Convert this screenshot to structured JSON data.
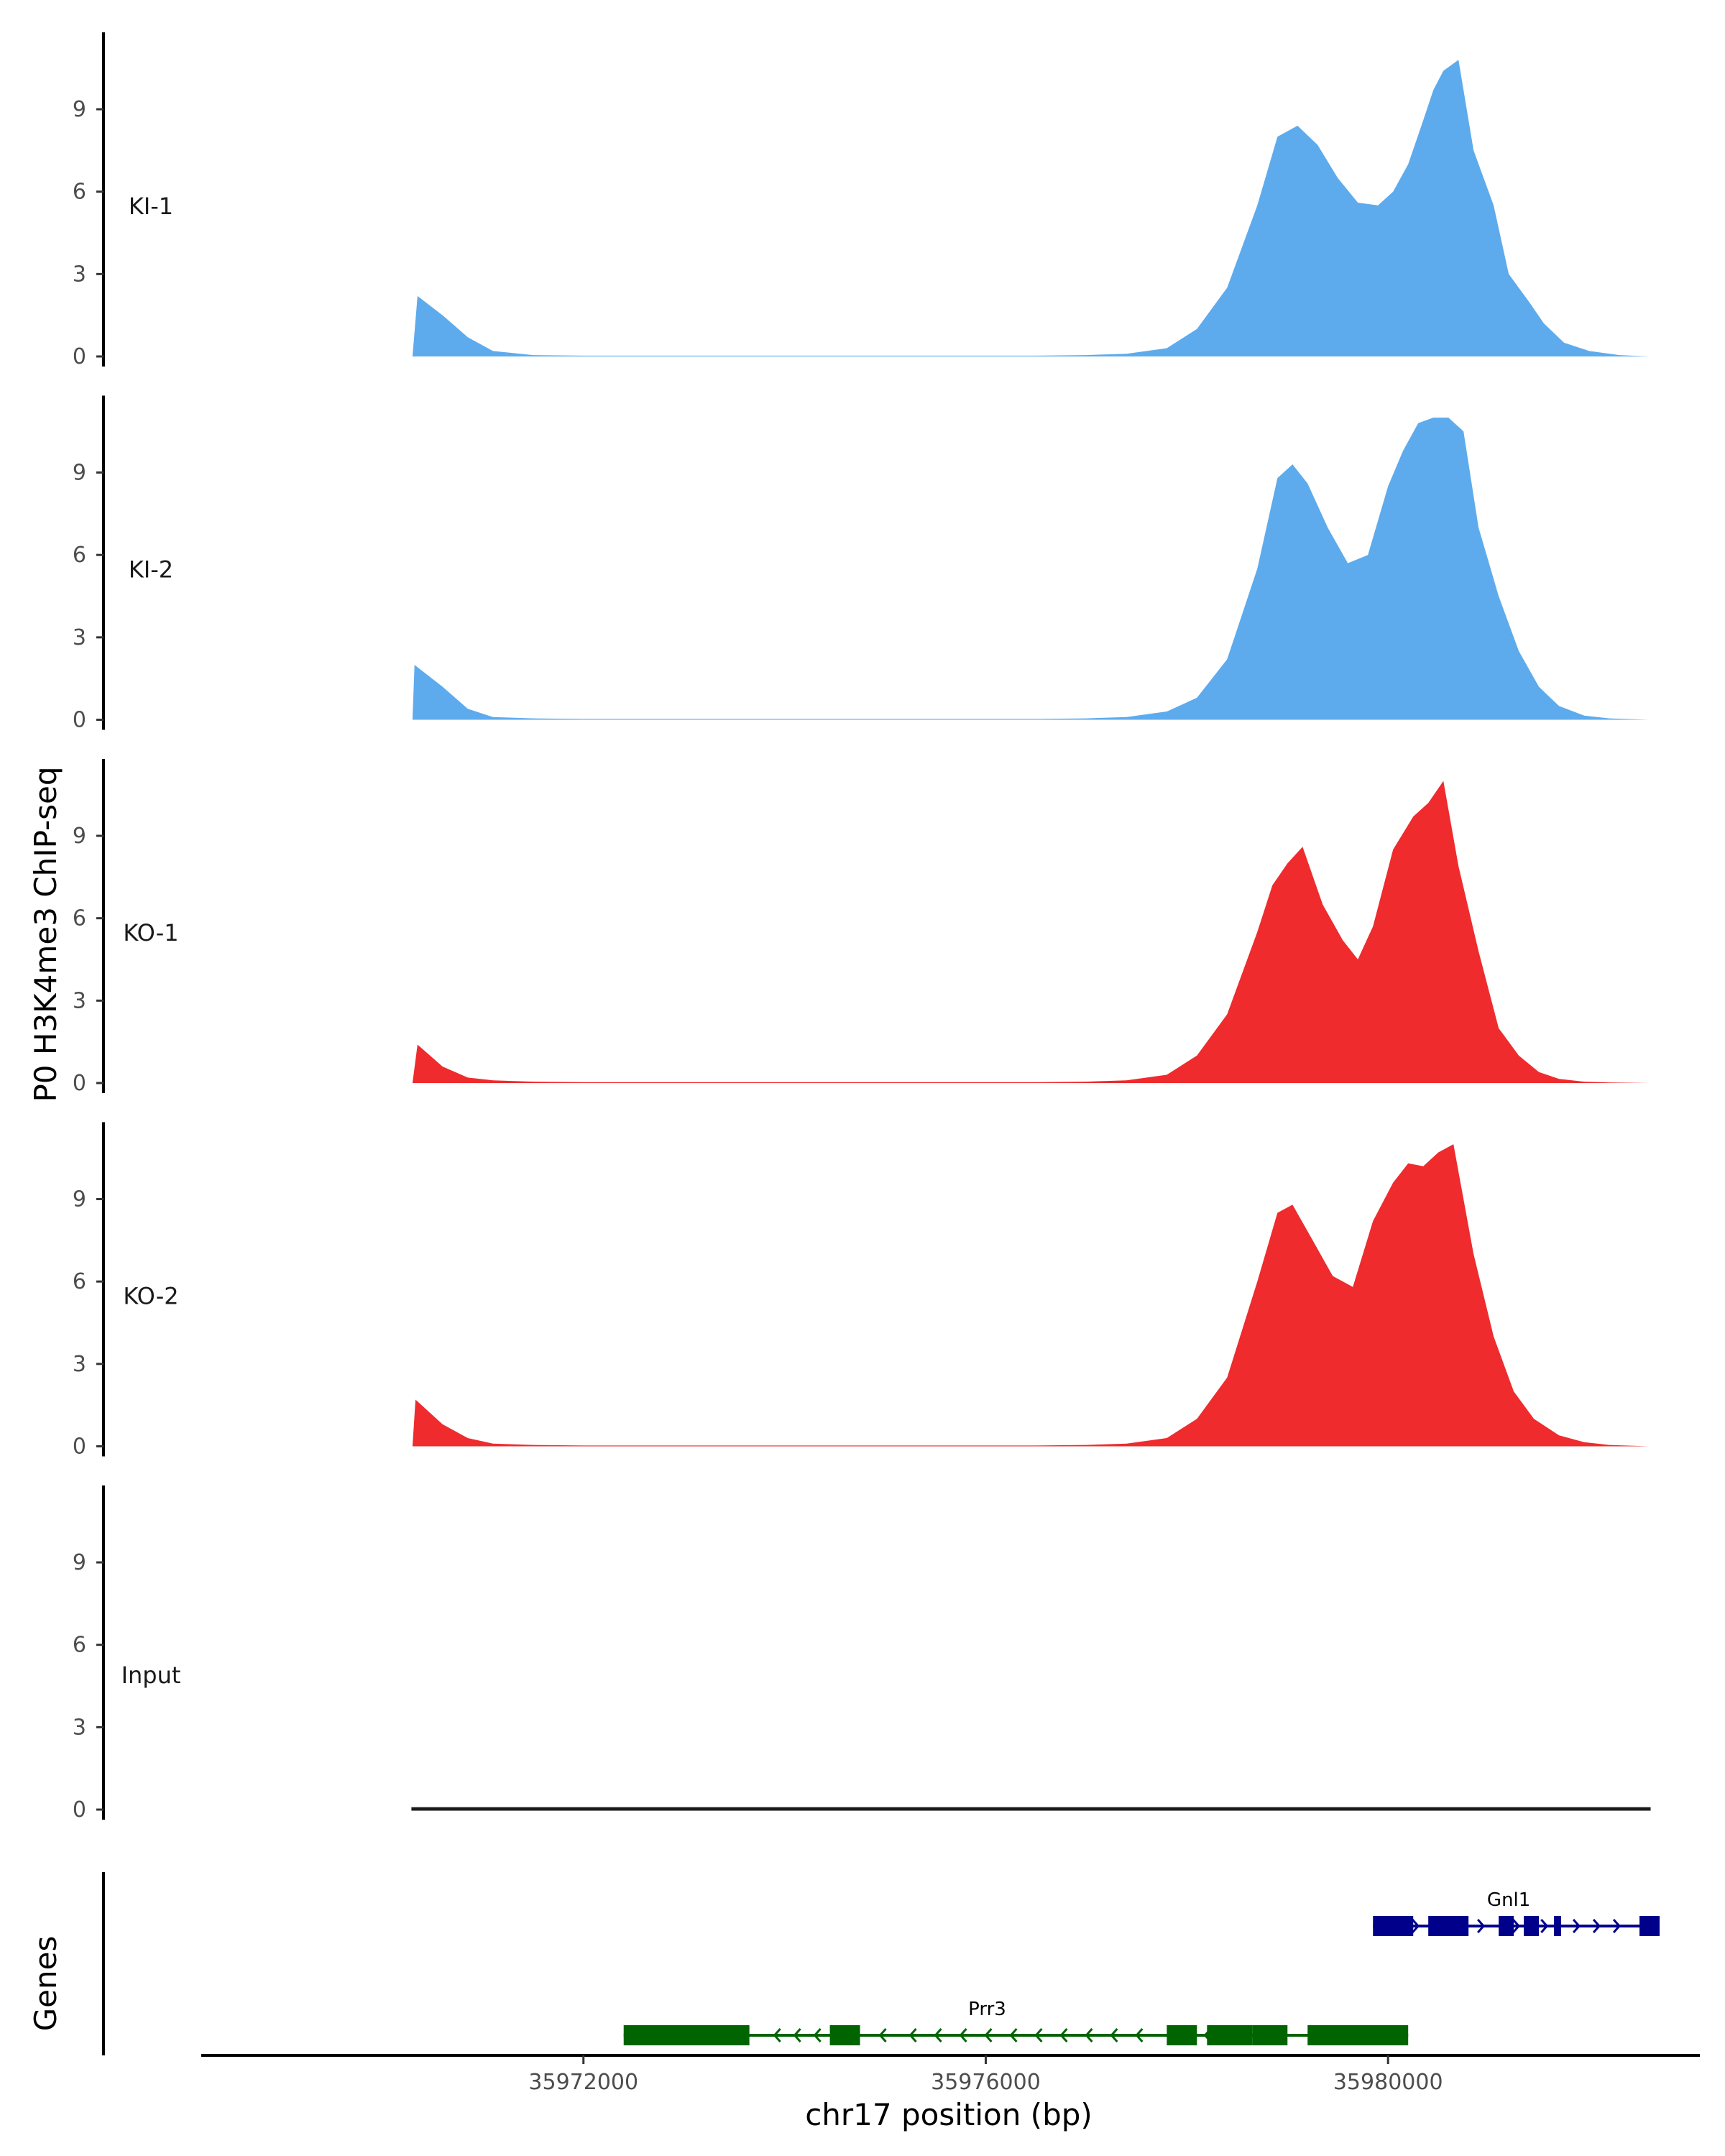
{
  "chart_data": {
    "type": "area",
    "ylabel": "P0 H3K4me3 ChIP-seq",
    "xlabel": "chr17 position (bp)",
    "genes_label": "Genes",
    "xlim": [
      35968200,
      35983100
    ],
    "ylim": [
      0,
      11.8
    ],
    "yticks": [
      0,
      3,
      6,
      9
    ],
    "xticks": [
      {
        "value": 35972000,
        "label": "35972000"
      },
      {
        "value": 35976000,
        "label": "35976000"
      },
      {
        "value": 35980000,
        "label": "35980000"
      }
    ],
    "colors": {
      "KI": "#5dabed",
      "KO": "#ef2b2d",
      "Input": "#1a1a1a",
      "Gnl1": "#00008b",
      "Prr3": "#006400"
    },
    "tracks": [
      {
        "label": "KI-1",
        "color": "#5dabed",
        "x": [
          35970300,
          35970350,
          35970600,
          35970850,
          35971100,
          35971500,
          35972000,
          35972500,
          35973000,
          35973500,
          35974000,
          35974500,
          35975000,
          35975500,
          35976000,
          35976500,
          35977000,
          35977400,
          35977800,
          35978100,
          35978400,
          35978700,
          35978900,
          35979100,
          35979300,
          35979500,
          35979700,
          35979900,
          35980050,
          35980200,
          35980350,
          35980450,
          35980550,
          35980700,
          35980850,
          35981050,
          35981200,
          35981400,
          35981550,
          35981750,
          35982000,
          35982300,
          35982600
        ],
        "y": [
          0,
          2.2,
          1.5,
          0.7,
          0.2,
          0.05,
          0.03,
          0.03,
          0.03,
          0.03,
          0.03,
          0.03,
          0.03,
          0.03,
          0.03,
          0.03,
          0.05,
          0.1,
          0.3,
          1.0,
          2.5,
          5.5,
          8.0,
          8.4,
          7.7,
          6.5,
          5.6,
          5.5,
          6.0,
          7.0,
          8.6,
          9.7,
          10.4,
          10.8,
          7.5,
          5.5,
          3.0,
          2.0,
          1.2,
          0.5,
          0.2,
          0.05,
          0
        ]
      },
      {
        "label": "KI-2",
        "color": "#5dabed",
        "x": [
          35970300,
          35970320,
          35970600,
          35970850,
          35971100,
          35971500,
          35972000,
          35972500,
          35973000,
          35973500,
          35974000,
          35974500,
          35975000,
          35975500,
          35976000,
          35976500,
          35977000,
          35977400,
          35977800,
          35978100,
          35978400,
          35978700,
          35978900,
          35979050,
          35979200,
          35979400,
          35979600,
          35979800,
          35980000,
          35980150,
          35980300,
          35980450,
          35980600,
          35980750,
          35980900,
          35981100,
          35981300,
          35981500,
          35981700,
          35981950,
          35982200,
          35982600
        ],
        "y": [
          0,
          2.0,
          1.2,
          0.4,
          0.1,
          0.05,
          0.03,
          0.03,
          0.03,
          0.03,
          0.03,
          0.03,
          0.03,
          0.03,
          0.03,
          0.03,
          0.05,
          0.1,
          0.3,
          0.8,
          2.2,
          5.5,
          8.8,
          9.3,
          8.6,
          7.0,
          5.7,
          6.0,
          8.5,
          9.8,
          10.8,
          11.0,
          11.0,
          10.5,
          7.0,
          4.5,
          2.5,
          1.2,
          0.5,
          0.15,
          0.05,
          0
        ]
      },
      {
        "label": "KO-1",
        "color": "#ef2b2d",
        "x": [
          35970300,
          35970350,
          35970600,
          35970850,
          35971100,
          35971500,
          35972000,
          35972500,
          35973000,
          35973500,
          35974000,
          35974500,
          35975000,
          35975500,
          35976000,
          35976500,
          35977000,
          35977400,
          35977800,
          35978100,
          35978400,
          35978700,
          35978850,
          35979000,
          35979150,
          35979350,
          35979550,
          35979700,
          35979850,
          35980050,
          35980250,
          35980400,
          35980550,
          35980700,
          35980900,
          35981100,
          35981300,
          35981500,
          35981700,
          35981950,
          35982200,
          35982600
        ],
        "y": [
          0,
          1.4,
          0.6,
          0.2,
          0.1,
          0.05,
          0.03,
          0.03,
          0.03,
          0.03,
          0.03,
          0.03,
          0.03,
          0.03,
          0.03,
          0.03,
          0.05,
          0.1,
          0.3,
          1.0,
          2.5,
          5.5,
          7.2,
          8.0,
          8.6,
          6.5,
          5.2,
          4.5,
          5.7,
          8.5,
          9.7,
          10.2,
          11.0,
          7.9,
          4.8,
          2.0,
          1.0,
          0.4,
          0.15,
          0.05,
          0.02,
          0
        ]
      },
      {
        "label": "KO-2",
        "color": "#ef2b2d",
        "x": [
          35970300,
          35970330,
          35970600,
          35970850,
          35971100,
          35971500,
          35972000,
          35972500,
          35973000,
          35973500,
          35974000,
          35974500,
          35975000,
          35975500,
          35976000,
          35976500,
          35977000,
          35977400,
          35977800,
          35978100,
          35978400,
          35978700,
          35978900,
          35979050,
          35979250,
          35979450,
          35979650,
          35979850,
          35980050,
          35980200,
          35980350,
          35980500,
          35980650,
          35980850,
          35981050,
          35981250,
          35981450,
          35981700,
          35981950,
          35982200,
          35982600
        ],
        "y": [
          0,
          1.7,
          0.8,
          0.3,
          0.1,
          0.05,
          0.03,
          0.03,
          0.03,
          0.03,
          0.03,
          0.03,
          0.03,
          0.03,
          0.03,
          0.03,
          0.05,
          0.1,
          0.3,
          1.0,
          2.5,
          6.0,
          8.5,
          8.8,
          7.5,
          6.2,
          5.8,
          8.2,
          9.6,
          10.3,
          10.2,
          10.7,
          11.0,
          7.0,
          4.0,
          2.0,
          1.0,
          0.4,
          0.15,
          0.05,
          0
        ]
      },
      {
        "label": "Input",
        "color": "#1a1a1a",
        "x": [
          35970300,
          35972000,
          35974000,
          35976000,
          35978000,
          35980000,
          35982600
        ],
        "y": [
          0.05,
          0.05,
          0.05,
          0.05,
          0.05,
          0.05,
          0.05
        ]
      }
    ],
    "genes": [
      {
        "name": "Gnl1",
        "color": "#00008b",
        "strand": "+",
        "start": 35979850,
        "end": 35982700,
        "exons": [
          [
            35979850,
            35980250
          ],
          [
            35980400,
            35980800
          ],
          [
            35981100,
            35981250
          ],
          [
            35981350,
            35981500
          ],
          [
            35981650,
            35981720
          ],
          [
            35982500,
            35982700
          ]
        ],
        "arrows": [
          35980300,
          35980950,
          35981300,
          35981580,
          35981900,
          35982100,
          35982300
        ]
      },
      {
        "name": "Prr3",
        "color": "#006400",
        "strand": "-",
        "start": 35972400,
        "end": 35980200,
        "exons": [
          [
            35972400,
            35973650
          ],
          [
            35974450,
            35974750
          ],
          [
            35977800,
            35978100
          ],
          [
            35978200,
            35978650
          ],
          [
            35978650,
            35979000
          ],
          [
            35979200,
            35980200
          ]
        ],
        "arrows": [
          35973900,
          35974100,
          35974300,
          35974950,
          35975250,
          35975500,
          35975750,
          35976000,
          35976250,
          35976500,
          35976750,
          35977000,
          35977250,
          35977500,
          35978180
        ]
      }
    ]
  }
}
